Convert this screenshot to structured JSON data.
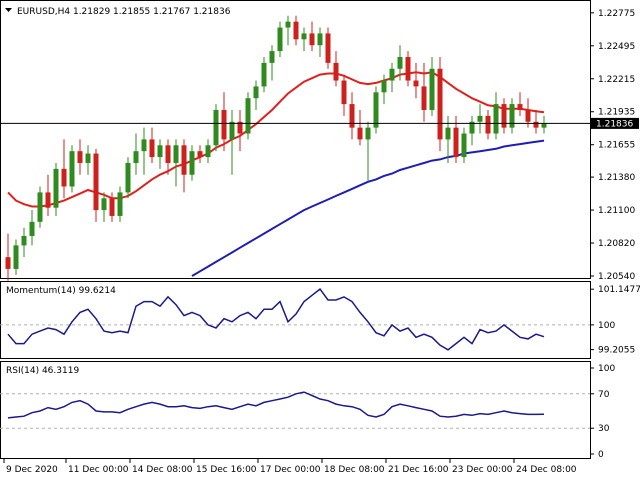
{
  "header": {
    "symbol_line": "EURUSD,H4  1.21829 1.21855 1.21767 1.21836"
  },
  "colors": {
    "bull": "#2e8b1e",
    "bear": "#d0201c",
    "ma_fast": "#e0201c",
    "ma_slow": "#1e1eb4",
    "osc": "#1a1a8c",
    "price_tag_bg": "#000000",
    "grid_dash": "#b0b0b0"
  },
  "price_axis": {
    "ticks": [
      "1.22775",
      "1.22495",
      "1.22215",
      "1.21935",
      "1.21655",
      "1.21380",
      "1.21100",
      "1.20820",
      "1.20540"
    ],
    "current_price": "1.21836"
  },
  "time_axis": {
    "ticks": [
      "9 Dec 2020",
      "11 Dec 00:00",
      "14 Dec 08:00",
      "15 Dec 16:00",
      "17 Dec 00:00",
      "18 Dec 08:00",
      "21 Dec 16:00",
      "23 Dec 00:00",
      "24 Dec 08:00"
    ]
  },
  "momentum": {
    "label": "Momentum(14) 99.6214",
    "ticks": [
      "101.1477",
      "100",
      "99.2055"
    ]
  },
  "rsi": {
    "label": "RSI(14) 46.3119",
    "ticks": [
      "100",
      "70",
      "30",
      "0"
    ]
  },
  "chart_data": {
    "type": "candlestick",
    "symbol": "EURUSD",
    "timeframe": "H4",
    "ylim": [
      1.2054,
      1.2285
    ],
    "candles": [
      [
        1.207,
        1.209,
        1.205,
        1.206
      ],
      [
        1.206,
        1.2085,
        1.2055,
        1.208
      ],
      [
        1.208,
        1.2095,
        1.207,
        1.2088
      ],
      [
        1.2088,
        1.211,
        1.208,
        1.21
      ],
      [
        1.21,
        1.213,
        1.2095,
        1.2125
      ],
      [
        1.2125,
        1.214,
        1.2105,
        1.2112
      ],
      [
        1.2112,
        1.215,
        1.2105,
        1.2145
      ],
      [
        1.2145,
        1.217,
        1.212,
        1.213
      ],
      [
        1.213,
        1.2165,
        1.2125,
        1.216
      ],
      [
        1.216,
        1.217,
        1.214,
        1.215
      ],
      [
        1.215,
        1.2165,
        1.214,
        1.2158
      ],
      [
        1.2158,
        1.2162,
        1.21,
        1.211
      ],
      [
        1.211,
        1.2125,
        1.21,
        1.212
      ],
      [
        1.212,
        1.2125,
        1.21,
        1.2105
      ],
      [
        1.2105,
        1.213,
        1.21,
        1.2125
      ],
      [
        1.2125,
        1.2155,
        1.212,
        1.215
      ],
      [
        1.215,
        1.2175,
        1.214,
        1.216
      ],
      [
        1.216,
        1.218,
        1.214,
        1.217
      ],
      [
        1.217,
        1.218,
        1.215,
        1.2155
      ],
      [
        1.2155,
        1.217,
        1.2145,
        1.2165
      ],
      [
        1.2165,
        1.217,
        1.214,
        1.215
      ],
      [
        1.215,
        1.217,
        1.213,
        1.2165
      ],
      [
        1.2165,
        1.217,
        1.2125,
        1.214
      ],
      [
        1.214,
        1.2165,
        1.2135,
        1.216
      ],
      [
        1.216,
        1.2165,
        1.215,
        1.2155
      ],
      [
        1.2155,
        1.217,
        1.215,
        1.2165
      ],
      [
        1.2165,
        1.22,
        1.216,
        1.2195
      ],
      [
        1.2195,
        1.221,
        1.216,
        1.217
      ],
      [
        1.217,
        1.2195,
        1.214,
        1.2185
      ],
      [
        1.2185,
        1.2195,
        1.216,
        1.2175
      ],
      [
        1.2175,
        1.221,
        1.217,
        1.2205
      ],
      [
        1.2205,
        1.222,
        1.2195,
        1.2215
      ],
      [
        1.2215,
        1.224,
        1.221,
        1.2235
      ],
      [
        1.2235,
        1.225,
        1.222,
        1.2245
      ],
      [
        1.2245,
        1.227,
        1.224,
        1.2265
      ],
      [
        1.2265,
        1.2275,
        1.225,
        1.227
      ],
      [
        1.227,
        1.2275,
        1.225,
        1.2255
      ],
      [
        1.2255,
        1.2265,
        1.2245,
        1.226
      ],
      [
        1.226,
        1.227,
        1.2245,
        1.225
      ],
      [
        1.225,
        1.2265,
        1.224,
        1.226
      ],
      [
        1.226,
        1.2265,
        1.223,
        1.2235
      ],
      [
        1.2235,
        1.2245,
        1.2215,
        1.222
      ],
      [
        1.222,
        1.2225,
        1.219,
        1.22
      ],
      [
        1.22,
        1.221,
        1.217,
        1.218
      ],
      [
        1.218,
        1.2195,
        1.2165,
        1.217
      ],
      [
        1.217,
        1.2185,
        1.2135,
        1.218
      ],
      [
        1.218,
        1.2215,
        1.2175,
        1.221
      ],
      [
        1.221,
        1.2225,
        1.22,
        1.222
      ],
      [
        1.222,
        1.2235,
        1.221,
        1.223
      ],
      [
        1.223,
        1.225,
        1.222,
        1.224
      ],
      [
        1.224,
        1.2245,
        1.2215,
        1.222
      ],
      [
        1.222,
        1.2235,
        1.2205,
        1.2215
      ],
      [
        1.2215,
        1.2235,
        1.2185,
        1.2195
      ],
      [
        1.2195,
        1.224,
        1.219,
        1.223
      ],
      [
        1.223,
        1.224,
        1.216,
        1.217
      ],
      [
        1.217,
        1.219,
        1.215,
        1.218
      ],
      [
        1.218,
        1.219,
        1.215,
        1.2155
      ],
      [
        1.2155,
        1.218,
        1.215,
        1.2175
      ],
      [
        1.2175,
        1.219,
        1.2165,
        1.2185
      ],
      [
        1.2185,
        1.22,
        1.2175,
        1.219
      ],
      [
        1.219,
        1.2195,
        1.217,
        1.2175
      ],
      [
        1.2175,
        1.221,
        1.217,
        1.22
      ],
      [
        1.22,
        1.2205,
        1.2175,
        1.218
      ],
      [
        1.218,
        1.2205,
        1.2175,
        1.22
      ],
      [
        1.22,
        1.221,
        1.219,
        1.2195
      ],
      [
        1.2195,
        1.2205,
        1.218,
        1.2185
      ],
      [
        1.2185,
        1.2195,
        1.2175,
        1.218
      ],
      [
        1.218,
        1.219,
        1.2175,
        1.21836
      ]
    ],
    "ma_fast": [
      1.2125,
      1.2118,
      1.2115,
      1.2113,
      1.2113,
      1.2114,
      1.2116,
      1.2118,
      1.2121,
      1.2124,
      1.2127,
      1.2125,
      1.2123,
      1.212,
      1.212,
      1.2122,
      1.2126,
      1.2131,
      1.2136,
      1.214,
      1.2143,
      1.2147,
      1.2149,
      1.2152,
      1.2155,
      1.2158,
      1.2163,
      1.2166,
      1.217,
      1.2173,
      1.2178,
      1.2183,
      1.2189,
      1.2195,
      1.2202,
      1.2209,
      1.2214,
      1.2219,
      1.2222,
      1.2225,
      1.2226,
      1.2226,
      1.2224,
      1.2221,
      1.2218,
      1.2217,
      1.2218,
      1.222,
      1.2222,
      1.2225,
      1.2226,
      1.2227,
      1.2226,
      1.2227,
      1.2223,
      1.2218,
      1.2213,
      1.2209,
      1.2205,
      1.2202,
      1.2199,
      1.2198,
      1.2196,
      1.2196,
      1.2196,
      1.2195,
      1.2194,
      1.2193
    ],
    "ma_slow": [
      null,
      null,
      null,
      null,
      null,
      null,
      null,
      null,
      null,
      null,
      null,
      null,
      null,
      null,
      null,
      null,
      null,
      null,
      null,
      null,
      null,
      null,
      null,
      1.2054,
      1.2058,
      1.2062,
      1.2066,
      1.207,
      1.2074,
      1.2078,
      1.2082,
      1.2086,
      1.209,
      1.2094,
      1.2098,
      1.2102,
      1.2106,
      1.211,
      1.2113,
      1.2116,
      1.2119,
      1.2122,
      1.2125,
      1.2128,
      1.2131,
      1.2134,
      1.2136,
      1.2139,
      1.2141,
      1.2144,
      1.2146,
      1.2148,
      1.215,
      1.2152,
      1.2153,
      1.2155,
      1.2156,
      1.2158,
      1.2159,
      1.216,
      1.2161,
      1.2162,
      1.2164,
      1.2165,
      1.2166,
      1.2167,
      1.2168,
      1.2169
    ],
    "momentum": {
      "ylim": [
        99.0,
        101.25
      ],
      "ref": 100,
      "values": [
        99.7,
        99.4,
        99.4,
        99.7,
        99.8,
        99.9,
        99.85,
        99.7,
        100.1,
        100.4,
        100.5,
        100.2,
        99.8,
        99.75,
        99.8,
        99.75,
        100.6,
        100.75,
        100.75,
        100.6,
        100.9,
        100.65,
        100.3,
        100.4,
        100.3,
        100.0,
        99.9,
        100.2,
        100.1,
        100.3,
        100.4,
        100.2,
        100.5,
        100.5,
        100.75,
        100.1,
        100.35,
        100.75,
        100.95,
        101.15,
        100.8,
        100.8,
        100.9,
        100.75,
        100.4,
        100.1,
        99.75,
        99.65,
        100.0,
        99.8,
        99.9,
        99.6,
        99.7,
        99.6,
        99.35,
        99.2,
        99.4,
        99.6,
        99.4,
        99.85,
        99.75,
        99.8,
        100.0,
        99.8,
        99.6,
        99.55,
        99.7,
        99.62
      ]
    },
    "rsi": {
      "ylim": [
        0,
        100
      ],
      "levels": [
        70,
        30
      ],
      "values": [
        42,
        43,
        44,
        48,
        50,
        54,
        52,
        55,
        60,
        62,
        58,
        50,
        49,
        49,
        48,
        52,
        55,
        58,
        60,
        58,
        55,
        55,
        56,
        54,
        53,
        55,
        56,
        54,
        52,
        55,
        58,
        56,
        60,
        62,
        64,
        66,
        70,
        72,
        68,
        64,
        62,
        58,
        56,
        55,
        52,
        45,
        43,
        46,
        55,
        58,
        56,
        54,
        52,
        50,
        44,
        43,
        44,
        46,
        45,
        47,
        46,
        48,
        50,
        48,
        47,
        46,
        46,
        46.3
      ]
    }
  }
}
